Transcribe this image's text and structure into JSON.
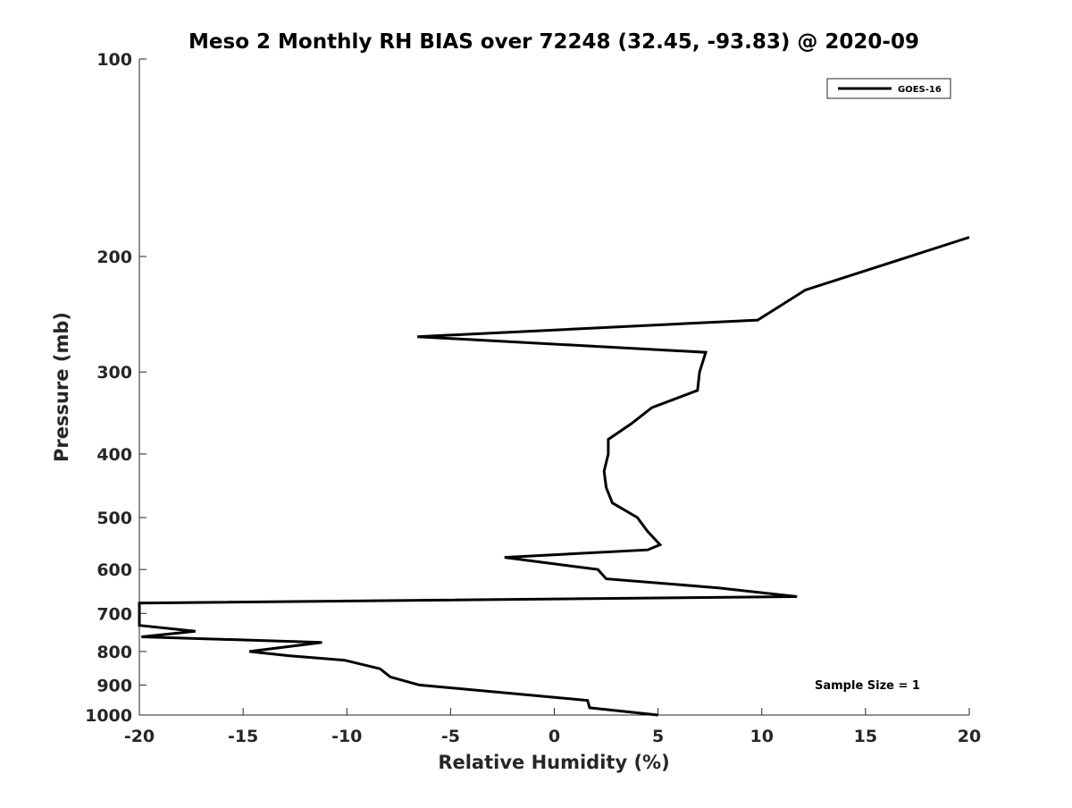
{
  "chart_data": {
    "type": "line",
    "title": "Meso 2 Monthly RH BIAS over 72248 (32.45, -93.83) @ 2020-09",
    "xlabel": "Relative Humidity (%)",
    "ylabel": "Pressure (mb)",
    "xlim": [
      -20,
      20
    ],
    "ylim": [
      100,
      1000
    ],
    "y_scale": "log",
    "y_reversed": true,
    "grid": false,
    "x_ticks": [
      -20,
      -15,
      -10,
      -5,
      0,
      5,
      10,
      15,
      20
    ],
    "x_tick_labels": [
      "-20",
      "-15",
      "-10",
      "-5",
      "0",
      "5",
      "10",
      "15",
      "20"
    ],
    "y_ticks": [
      100,
      200,
      300,
      400,
      500,
      600,
      700,
      800,
      900,
      1000
    ],
    "y_tick_labels": [
      "100",
      "200",
      "300",
      "400",
      "500",
      "600",
      "700",
      "800",
      "900",
      "1000"
    ],
    "legend": {
      "position": "top-right",
      "entries": [
        "GOES-16"
      ]
    },
    "annotations": [
      {
        "text": "Sample Size = 1",
        "position": "bottom-right"
      }
    ],
    "series": [
      {
        "name": "GOES-16",
        "color": "#000000",
        "points": [
          [
            5.0,
            1000
          ],
          [
            1.7,
            975
          ],
          [
            1.6,
            950
          ],
          [
            -6.5,
            900
          ],
          [
            -7.9,
            875
          ],
          [
            -8.4,
            850
          ],
          [
            -10.1,
            825
          ],
          [
            -12.8,
            812
          ],
          [
            -14.7,
            800
          ],
          [
            -11.2,
            775
          ],
          [
            -19.9,
            760
          ],
          [
            -17.3,
            745
          ],
          [
            -20.0,
            730
          ],
          [
            -20.0,
            675
          ],
          [
            11.7,
            660
          ],
          [
            7.9,
            640
          ],
          [
            2.5,
            620
          ],
          [
            2.1,
            600
          ],
          [
            -2.4,
            575
          ],
          [
            4.5,
            560
          ],
          [
            5.1,
            550
          ],
          [
            4.5,
            525
          ],
          [
            4.0,
            500
          ],
          [
            2.8,
            475
          ],
          [
            2.5,
            450
          ],
          [
            2.4,
            425
          ],
          [
            2.6,
            400
          ],
          [
            2.6,
            380
          ],
          [
            3.7,
            360
          ],
          [
            4.7,
            340
          ],
          [
            6.9,
            320
          ],
          [
            7.0,
            300
          ],
          [
            7.3,
            280
          ],
          [
            -6.6,
            265
          ],
          [
            9.8,
            250
          ],
          [
            12.1,
            225
          ],
          [
            20.0,
            187
          ]
        ]
      }
    ]
  }
}
